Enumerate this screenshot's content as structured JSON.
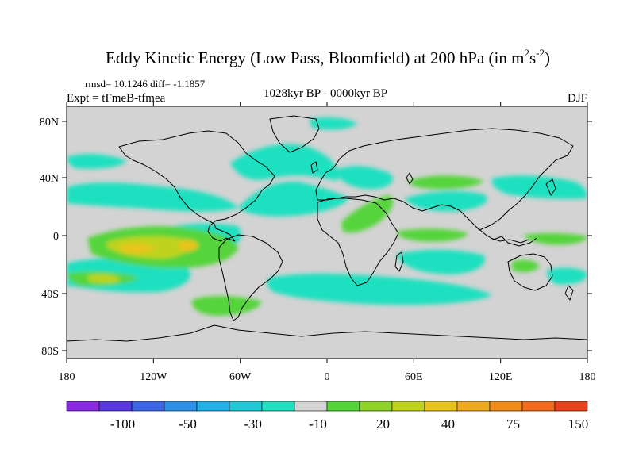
{
  "title": {
    "main": "Eddy Kinetic Energy (Low Pass, Bloomfield) at 200 hPa (in m",
    "sup1": "2",
    "mid": "s",
    "sup2": "-2",
    "close": ")"
  },
  "stats": "rmsd= 10.1246 diff= -1.1857",
  "experiment": "Expt = tFmeB-tfmea",
  "period": "1028kyr BP - 0000kyr BP",
  "season": "DJF",
  "axes": {
    "lat_ticks": [
      "80N",
      "40N",
      "0",
      "40S",
      "80S"
    ],
    "lon_ticks": [
      "180",
      "120W",
      "60W",
      "0",
      "60E",
      "120E",
      "180"
    ]
  },
  "colorbar": {
    "colors": [
      "#8a2be2",
      "#5a3ae0",
      "#3a66e6",
      "#2e8fe6",
      "#1fb1e6",
      "#1ec8d6",
      "#1fe0c0",
      "#d3d3d3",
      "#55d43a",
      "#8fd22a",
      "#c0d31a",
      "#e8c41a",
      "#ecaa1c",
      "#f08c1c",
      "#f06a1c",
      "#e8401a"
    ],
    "labels": [
      "-100",
      "-50",
      "-30",
      "-10",
      "20",
      "40",
      "75",
      "150"
    ]
  },
  "palette": {
    "neutral": "#d3d3d3",
    "cyan": "#1fe0c0",
    "green": "#55d43a",
    "yellowgreen": "#c0d31a",
    "yellow": "#e8c41a"
  }
}
